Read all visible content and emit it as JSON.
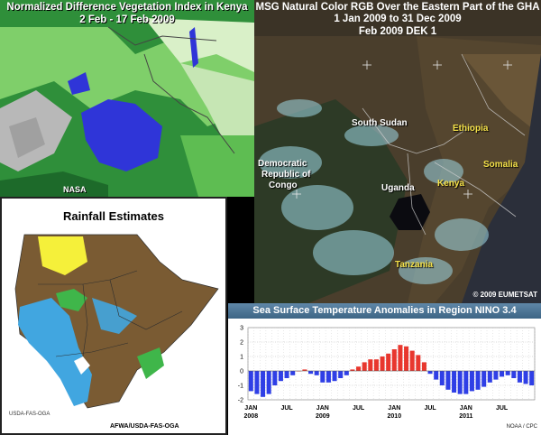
{
  "ndvi": {
    "title_line1": "Normalized Difference Vegetation Index in Kenya",
    "title_line2": "2 Feb - 17 Feb 2009",
    "credit": "NASA"
  },
  "msg": {
    "title_line1": "MSG Natural Color RGB Over the Eastern Part of the GHA",
    "title_line2": "1 Jan 2009 to 31 Dec 2009",
    "title_line3": "Feb 2009 DEK 1",
    "labels": {
      "south_sudan": "South Sudan",
      "ethiopia": "Ethiopia",
      "drc_1": "Democratic",
      "drc_2": "Republic of",
      "drc_3": "Congo",
      "uganda": "Uganda",
      "kenya": "Kenya",
      "somalia": "Somalia",
      "tanzania": "Tanzania"
    },
    "copyright": "© 2009 EUMETSAT"
  },
  "rainfall": {
    "title": "Rainfall Estimates",
    "credit_small": "USDA-FAS-OGA",
    "credit_bottom": "AFWA/USDA-FAS-OGA"
  },
  "sst": {
    "title": "Sea Surface Temperature Anomalies in Region NINO 3.4",
    "credit": "NOAA / CPC",
    "colors": {
      "positive": "#e8372e",
      "negative": "#2f3fe6",
      "header": "#4a7294"
    },
    "year_labels": [
      "2008",
      "2009",
      "2010",
      "2011"
    ]
  },
  "chart_data": {
    "type": "bar",
    "title": "Sea Surface Temperature Anomalies in Region NINO 3.4",
    "ylim": [
      -2,
      3
    ],
    "yticks": [
      3,
      2,
      1,
      0,
      -1,
      -2
    ],
    "grid": true,
    "xtick_labels": [
      "JAN",
      "JUL",
      "JAN",
      "JUL",
      "JAN",
      "JUL",
      "JAN",
      "JUL"
    ],
    "values": [
      -1.4,
      -1.6,
      -1.8,
      -1.6,
      -1.0,
      -0.7,
      -0.5,
      -0.3,
      0.0,
      0.1,
      -0.2,
      -0.3,
      -0.8,
      -0.8,
      -0.7,
      -0.5,
      -0.3,
      0.1,
      0.3,
      0.6,
      0.8,
      0.8,
      1.0,
      1.2,
      1.5,
      1.8,
      1.7,
      1.4,
      1.1,
      0.6,
      -0.2,
      -0.6,
      -1.0,
      -1.3,
      -1.5,
      -1.6,
      -1.6,
      -1.4,
      -1.3,
      -1.1,
      -0.8,
      -0.6,
      -0.4,
      -0.3,
      -0.5,
      -0.8,
      -0.9,
      -1.0
    ]
  }
}
